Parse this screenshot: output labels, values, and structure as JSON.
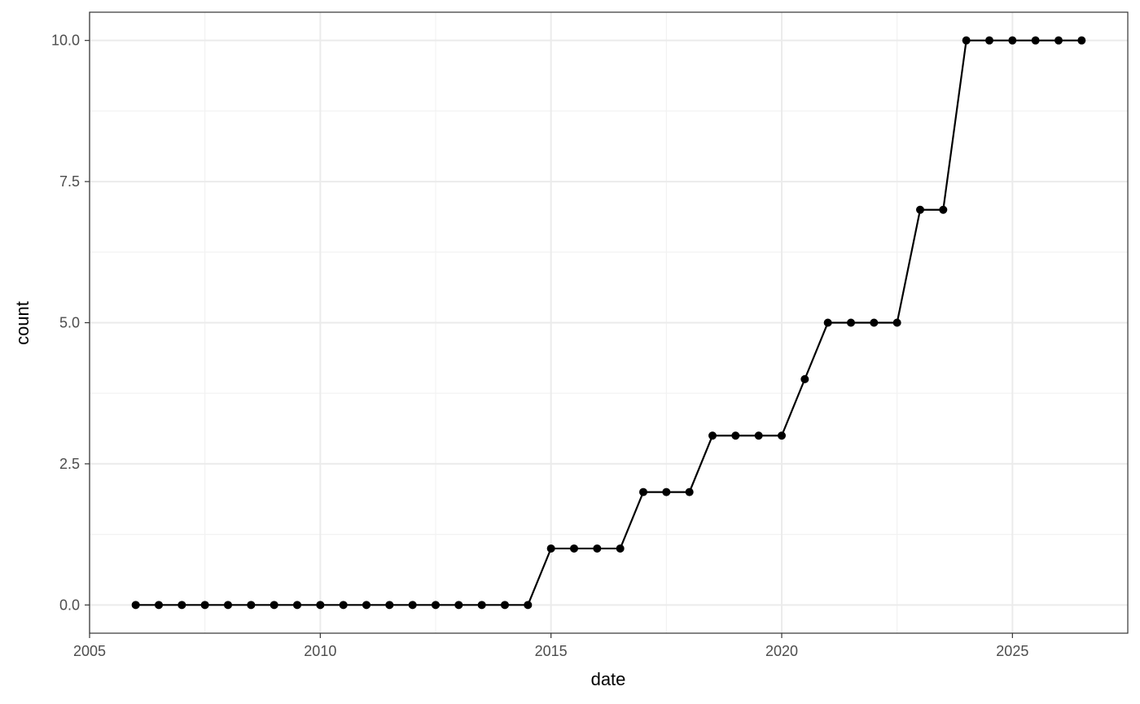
{
  "chart_data": {
    "type": "line",
    "title": "",
    "xlabel": "date",
    "ylabel": "count",
    "x_ticks": [
      "2005",
      "2010",
      "2015",
      "2020",
      "2025"
    ],
    "y_ticks": [
      "0.0",
      "2.5",
      "5.0",
      "7.5",
      "10.0"
    ],
    "xlim": [
      "2005-01-01",
      "2027-07-01"
    ],
    "ylim": [
      -0.5,
      10.5
    ],
    "grid": true,
    "legend": "none",
    "colors": {
      "line": "#000000",
      "point": "#000000",
      "grid": "#ebebeb",
      "border": "#333333"
    },
    "series": [
      {
        "x": [
          "2006-01-01",
          "2006-07-01",
          "2007-01-01",
          "2007-07-01",
          "2008-01-01",
          "2008-07-01",
          "2009-01-01",
          "2009-07-01",
          "2010-01-01",
          "2010-07-01",
          "2011-01-01",
          "2011-07-01",
          "2012-01-01",
          "2012-07-01",
          "2013-01-01",
          "2013-07-01",
          "2014-01-01",
          "2014-07-01",
          "2015-01-01",
          "2015-07-01",
          "2016-01-01",
          "2016-07-01",
          "2017-01-01",
          "2017-07-01",
          "2018-01-01",
          "2018-07-01",
          "2019-01-01",
          "2019-07-01",
          "2020-01-01",
          "2020-07-01",
          "2021-01-01",
          "2021-07-01",
          "2022-01-01",
          "2022-07-01",
          "2023-01-01",
          "2023-07-01",
          "2024-01-01",
          "2024-07-01",
          "2025-01-01",
          "2025-07-01",
          "2026-01-01",
          "2026-07-01"
        ],
        "values": [
          0,
          0,
          0,
          0,
          0,
          0,
          0,
          0,
          0,
          0,
          0,
          0,
          0,
          0,
          0,
          0,
          0,
          0,
          1,
          1,
          1,
          1,
          2,
          2,
          2,
          3,
          3,
          3,
          3,
          4,
          5,
          5,
          5,
          5,
          7,
          7,
          10,
          10,
          10,
          10,
          10,
          10
        ]
      }
    ]
  }
}
